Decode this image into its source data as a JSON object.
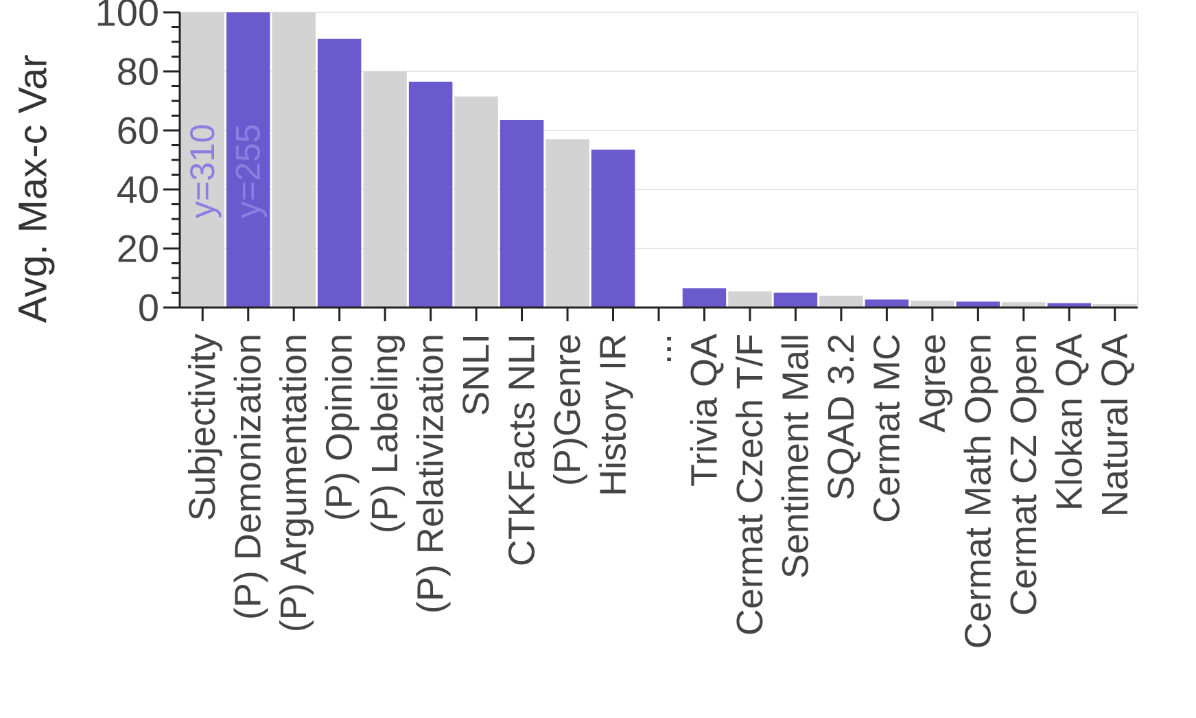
{
  "chart_data": {
    "type": "bar",
    "title": "",
    "xlabel": "",
    "ylabel": "Avg. Max-c Var",
    "ylim": [
      0,
      100
    ],
    "yticks": [
      0,
      20,
      40,
      60,
      80,
      100
    ],
    "grid": true,
    "legend": "none",
    "colors": {
      "purple": "#6a5acd",
      "gray": "#d3d3d3",
      "annotation": "#8a7fe0",
      "axis": "#222222",
      "grid": "#e6e6e6"
    },
    "categories": [
      "Subjectivity",
      "(P) Demonization",
      "(P) Argumentation",
      "(P) Opinion",
      "(P) Labeling",
      "(P) Relativization",
      "SNLI",
      "CTKFacts NLI",
      "(P)Genre",
      "History IR",
      "...",
      "Trivia QA",
      "Cermat Czech T/F",
      "Sentiment Mall",
      "SQAD 3.2",
      "Cermat MC",
      "Agree",
      "Cermat Math Open",
      "Cermat CZ Open",
      "Klokan QA",
      "Natural QA"
    ],
    "values": [
      100,
      100,
      100,
      91,
      80,
      76.5,
      71.5,
      63.5,
      57,
      53.5,
      null,
      6.5,
      5.5,
      5,
      4,
      2.7,
      2.3,
      2,
      1.8,
      1.5,
      1.2
    ],
    "bar_colors": [
      "gray",
      "purple",
      "gray",
      "purple",
      "gray",
      "purple",
      "gray",
      "purple",
      "gray",
      "purple",
      null,
      "purple",
      "gray",
      "purple",
      "gray",
      "purple",
      "gray",
      "purple",
      "gray",
      "purple",
      "gray"
    ],
    "annotations": [
      {
        "category": "Subjectivity",
        "text": "y=310"
      },
      {
        "category": "(P) Demonization",
        "text": "y=255"
      }
    ]
  }
}
